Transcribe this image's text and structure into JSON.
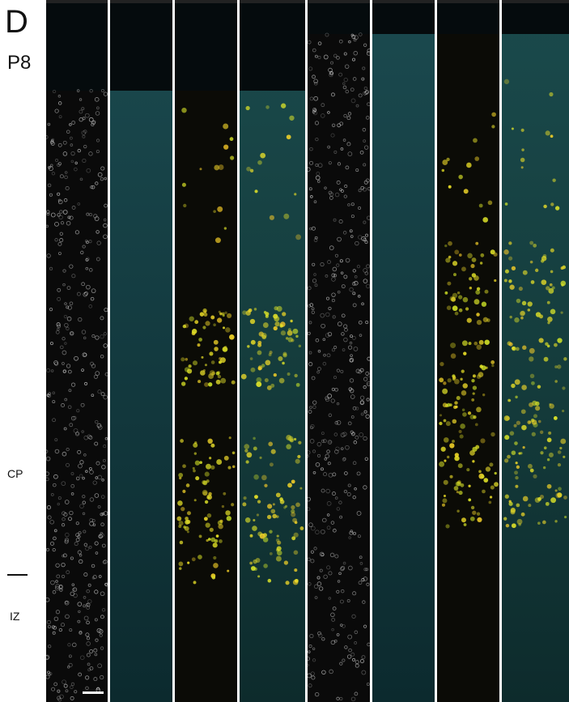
{
  "panel": {
    "label": "D",
    "age": "P8"
  },
  "regions": [
    {
      "label": "CP"
    },
    {
      "label": "IZ"
    }
  ]
}
